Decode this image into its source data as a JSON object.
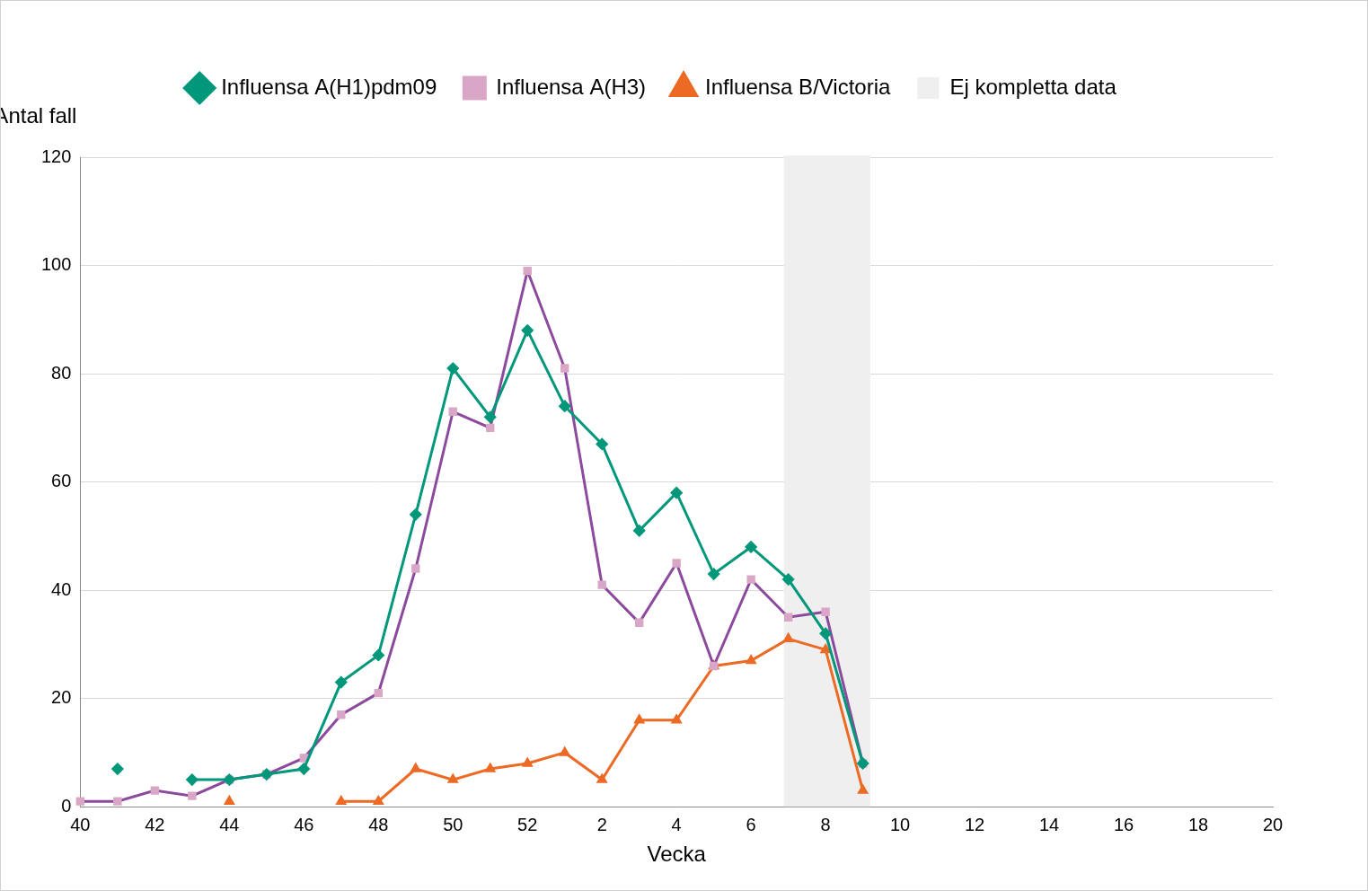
{
  "chart_data": {
    "type": "line",
    "x_label": "Vecka",
    "y_label": "Antal fall",
    "categories": [
      40,
      null,
      42,
      null,
      44,
      null,
      46,
      null,
      48,
      null,
      50,
      null,
      52,
      null,
      2,
      null,
      4,
      null,
      6,
      null,
      8,
      null,
      10,
      null,
      12,
      null,
      14,
      null,
      16,
      null,
      18,
      null,
      20
    ],
    "series": [
      {
        "name": "Influensa A(H1)pdm09",
        "color": "#00977a",
        "marker": "diamond",
        "values": [
          null,
          7,
          null,
          5,
          5,
          6,
          7,
          23,
          28,
          54,
          81,
          72,
          88,
          74,
          67,
          51,
          58,
          43,
          48,
          42,
          32,
          8,
          null,
          null,
          null,
          null,
          null,
          null,
          null,
          null,
          null,
          null,
          null
        ]
      },
      {
        "name": "Influensa A(H3)",
        "color": "#8c4a9c",
        "marker": "square",
        "values": [
          1,
          1,
          3,
          2,
          5,
          6,
          9,
          17,
          21,
          44,
          73,
          70,
          99,
          81,
          41,
          34,
          45,
          26,
          42,
          35,
          36,
          8,
          null,
          null,
          null,
          null,
          null,
          null,
          null,
          null,
          null,
          null,
          null
        ]
      },
      {
        "name": "Influensa B/Victoria",
        "color": "#ec6a24",
        "marker": "triangle",
        "values": [
          null,
          null,
          null,
          null,
          1,
          null,
          null,
          1,
          1,
          7,
          5,
          7,
          8,
          10,
          5,
          16,
          16,
          26,
          27,
          31,
          29,
          3,
          null,
          null,
          null,
          null,
          null,
          null,
          null,
          null,
          null,
          null,
          null
        ]
      }
    ],
    "shaded_region": {
      "label": "Ej kompletta data",
      "from": 7,
      "to": 9,
      "color": "#efefef"
    },
    "ylim": [
      0,
      120
    ],
    "yticks": [
      0,
      20,
      40,
      60,
      80,
      100,
      120
    ],
    "grid": true,
    "legend": "top"
  }
}
